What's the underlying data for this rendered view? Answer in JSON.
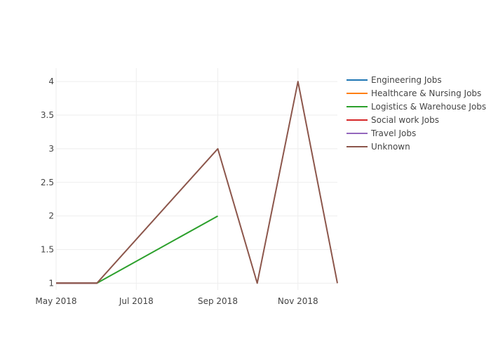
{
  "chart_data": {
    "type": "line",
    "title": "",
    "xlabel": "",
    "ylabel": "",
    "x_ticks": [
      {
        "date": "2018-05-01",
        "label": "May 2018"
      },
      {
        "date": "2018-07-01",
        "label": "Jul 2018"
      },
      {
        "date": "2018-09-01",
        "label": "Sep 2018"
      },
      {
        "date": "2018-11-01",
        "label": "Nov 2018"
      }
    ],
    "xlim": [
      "2018-05-01",
      "2018-12-01"
    ],
    "y_ticks": [
      {
        "value": 1,
        "label": "1"
      },
      {
        "value": 1.5,
        "label": "1.5"
      },
      {
        "value": 2,
        "label": "2"
      },
      {
        "value": 2.5,
        "label": "2.5"
      },
      {
        "value": 3,
        "label": "3"
      },
      {
        "value": 3.5,
        "label": "3.5"
      },
      {
        "value": 4,
        "label": "4"
      }
    ],
    "ylim": [
      0.9,
      4.2
    ],
    "grid": true,
    "legend_position": "right",
    "series": [
      {
        "name": "Engineering Jobs",
        "color": "#1f77b4",
        "x": [
          "2018-05-01",
          "2018-06-01"
        ],
        "y": [
          1,
          1
        ]
      },
      {
        "name": "Healthcare & Nursing Jobs",
        "color": "#ff7f0e",
        "x": [
          "2018-05-01",
          "2018-06-01"
        ],
        "y": [
          1,
          1
        ]
      },
      {
        "name": "Logistics & Warehouse Jobs",
        "color": "#2ca02c",
        "x": [
          "2018-05-01",
          "2018-06-01",
          "2018-09-01"
        ],
        "y": [
          1,
          1,
          2
        ]
      },
      {
        "name": "Social work Jobs",
        "color": "#d62728",
        "x": [
          "2018-05-01",
          "2018-06-01"
        ],
        "y": [
          1,
          1
        ]
      },
      {
        "name": "Travel Jobs",
        "color": "#9467bd",
        "x": [
          "2018-05-01",
          "2018-06-01"
        ],
        "y": [
          1,
          1
        ]
      },
      {
        "name": "Unknown",
        "color": "#8c564b",
        "x": [
          "2018-05-01",
          "2018-06-01",
          "2018-09-01",
          "2018-10-01",
          "2018-11-01",
          "2018-12-01"
        ],
        "y": [
          1,
          1,
          3,
          1,
          4,
          1
        ]
      }
    ]
  }
}
